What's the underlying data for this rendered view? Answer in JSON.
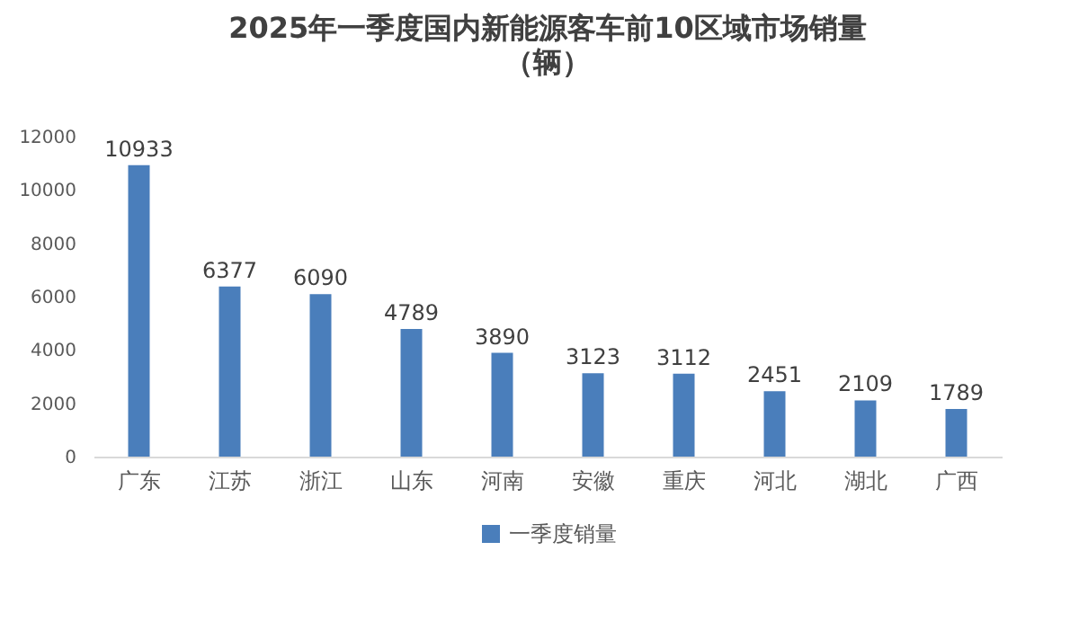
{
  "chart_data": {
    "type": "bar",
    "title": "2025年一季度国内新能源客车前10区域市场销量",
    "subtitle": "（辆）",
    "categories": [
      "广东",
      "江苏",
      "浙江",
      "山东",
      "河南",
      "安徽",
      "重庆",
      "河北",
      "湖北",
      "广西"
    ],
    "series": [
      {
        "name": "一季度销量",
        "color": "#4a7ebb",
        "values": [
          10933,
          6377,
          6090,
          4789,
          3890,
          3123,
          3112,
          2451,
          2109,
          1789
        ]
      }
    ],
    "ylim": [
      0,
      12000
    ],
    "yticks": [
      0,
      2000,
      4000,
      6000,
      8000,
      10000,
      12000
    ],
    "grid": false,
    "legend": "bottom",
    "data_labels": true
  }
}
